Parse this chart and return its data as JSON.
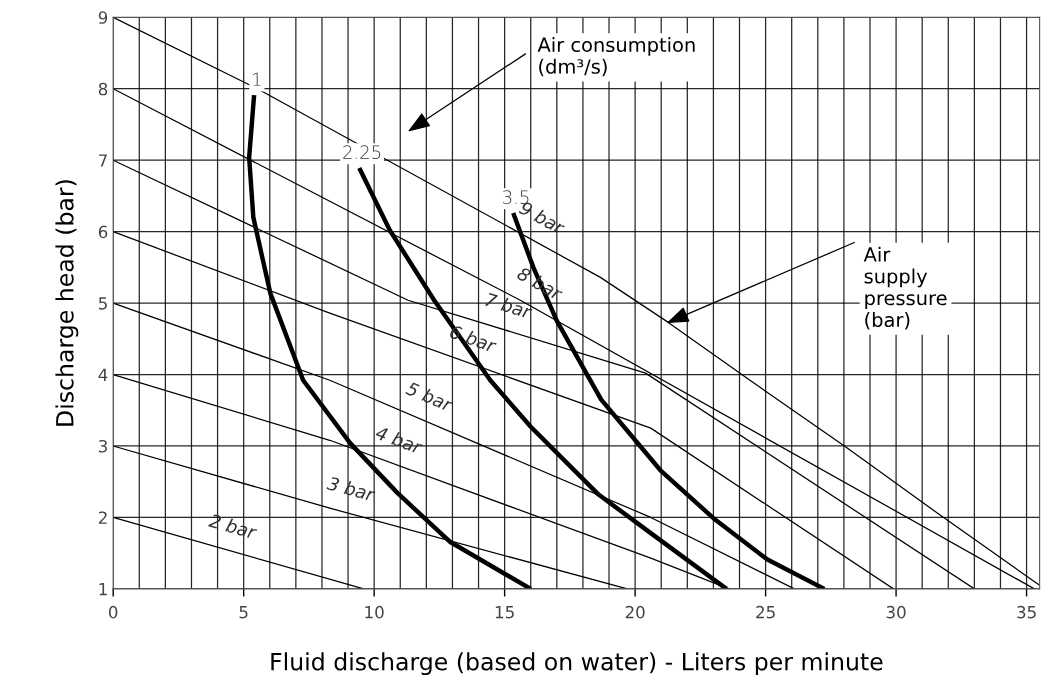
{
  "chart_data": {
    "type": "line",
    "xlabel": "Fluid discharge (based on water) - Liters per minute",
    "ylabel": "Discharge head (bar)",
    "xlim": [
      0,
      35.5
    ],
    "ylim": [
      1,
      9
    ],
    "xticks": [
      0,
      {
        "value": 1,
        "label": null
      },
      {
        "value": 2,
        "label": null
      },
      {
        "value": 3,
        "label": null
      },
      {
        "value": 4,
        "label": null
      },
      5,
      {
        "value": 6,
        "label": null
      },
      {
        "value": 7,
        "label": null
      },
      {
        "value": 8,
        "label": null
      },
      {
        "value": 9,
        "label": null
      },
      10,
      {
        "value": 11,
        "label": null
      },
      {
        "value": 12,
        "label": null
      },
      {
        "value": 13,
        "label": null
      },
      {
        "value": 14,
        "label": null
      },
      15,
      {
        "value": 16,
        "label": null
      },
      {
        "value": 17,
        "label": null
      },
      {
        "value": 18,
        "label": null
      },
      {
        "value": 19,
        "label": null
      },
      20,
      {
        "value": 21,
        "label": null
      },
      {
        "value": 22,
        "label": null
      },
      {
        "value": 23,
        "label": null
      },
      {
        "value": 24,
        "label": null
      },
      25,
      {
        "value": 26,
        "label": null
      },
      {
        "value": 27,
        "label": null
      },
      {
        "value": 28,
        "label": null
      },
      {
        "value": 29,
        "label": null
      },
      30,
      {
        "value": 31,
        "label": null
      },
      {
        "value": 32,
        "label": null
      },
      {
        "value": 33,
        "label": null
      },
      {
        "value": 34,
        "label": null
      },
      35
    ],
    "yticks": [
      1,
      2,
      3,
      4,
      5,
      6,
      7,
      8,
      9
    ],
    "grid": true,
    "marker": "none",
    "line_style": "solid",
    "series": [
      {
        "name": "1",
        "color": "#000000",
        "x": [
          5.4,
          5.21,
          5.37,
          6.02,
          7.28,
          9.08,
          10.9,
          12.9,
          16.0
        ],
        "values": [
          7.91,
          7.04,
          6.2,
          5.14,
          3.92,
          3.04,
          2.34,
          1.66,
          1.0
        ]
      },
      {
        "name": "2.25",
        "color": "#000000",
        "x": [
          9.43,
          10.6,
          12.3,
          14.45,
          16.0,
          18.6,
          20.6,
          23.5
        ],
        "values": [
          6.89,
          6.02,
          5.04,
          3.92,
          3.27,
          2.32,
          1.78,
          1.0
        ]
      },
      {
        "name": "3.5",
        "color": "#000000",
        "x": [
          15.33,
          16.1,
          17.0,
          18.7,
          20.97,
          23.0,
          25.07,
          27.25
        ],
        "values": [
          6.26,
          5.5,
          4.75,
          3.65,
          2.66,
          1.99,
          1.41,
          1.0
        ]
      },
      {
        "name": "2 bar",
        "color": "#000000",
        "x": [
          0,
          9.6
        ],
        "values": [
          2,
          1
        ]
      },
      {
        "name": "3 bar",
        "color": "#000000",
        "x": [
          0,
          8.3,
          19.7
        ],
        "values": [
          3,
          2.13,
          1
        ]
      },
      {
        "name": "4 bar",
        "color": "#000000",
        "x": [
          0,
          8.3,
          20.6,
          23.6
        ],
        "values": [
          4,
          3.08,
          1.43,
          1
        ]
      },
      {
        "name": "5 bar",
        "color": "#000000",
        "x": [
          0,
          8.3,
          20.6,
          26.1
        ],
        "values": [
          5,
          3.92,
          2.0,
          1
        ]
      },
      {
        "name": "6 bar",
        "color": "#000000",
        "x": [
          0,
          8.3,
          20.6,
          29.9
        ],
        "values": [
          6,
          4.86,
          3.25,
          1
        ]
      },
      {
        "name": "7 bar",
        "color": "#000000",
        "x": [
          0,
          11.3,
          20.4,
          33.0
        ],
        "values": [
          7,
          5.04,
          4.02,
          1
        ]
      },
      {
        "name": "8 bar",
        "color": "#000000",
        "x": [
          0,
          15.6,
          35.3
        ],
        "values": [
          8,
          5.04,
          1
        ]
      },
      {
        "name": "9 bar",
        "color": "#000000",
        "x": [
          0,
          5.63,
          18.67,
          21.27,
          24.4,
          28.06,
          31.7,
          35.5
        ],
        "values": [
          9,
          7.98,
          5.36,
          4.73,
          3.92,
          2.99,
          2.03,
          1.05
        ]
      }
    ],
    "annotations": [
      "Air consumption\n(dm³/s)",
      {
        "text": "Air\nsupply\npressure\n(bar)",
        "x": 21.2,
        "y": 4.72
      }
    ]
  }
}
